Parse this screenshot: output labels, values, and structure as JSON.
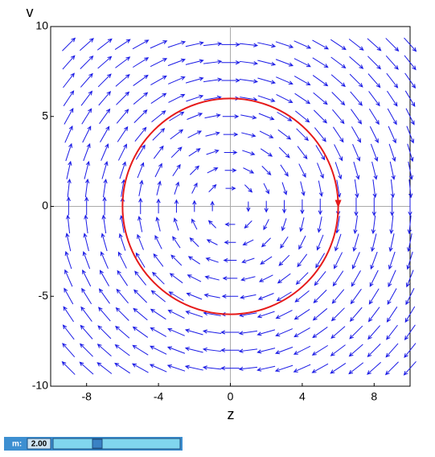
{
  "chart_data": {
    "type": "vector_field",
    "xlabel": "z",
    "ylabel": "v",
    "xlim": [
      -10,
      10
    ],
    "ylim": [
      -10,
      10
    ],
    "xticks": [
      -8,
      -4,
      0,
      4,
      8
    ],
    "yticks": [
      -10,
      -5,
      0,
      5,
      10
    ],
    "color": "#1a1ae6",
    "field": {
      "z": [
        -9,
        -8,
        -7,
        -6,
        -5,
        -4,
        -3,
        -2,
        -1,
        0,
        1,
        2,
        3,
        4,
        5,
        6,
        7,
        8,
        9,
        10
      ],
      "v": [
        -9,
        -8,
        -7,
        -6,
        -5,
        -4,
        -3,
        -2,
        -1,
        0,
        1,
        2,
        3,
        4,
        5,
        6,
        7,
        8,
        9
      ],
      "u": [
        [
          -9,
          -9,
          -9,
          -9,
          -9,
          -9,
          -9,
          -9,
          -9,
          -9,
          -9,
          -9,
          -9,
          -9,
          -9,
          -9,
          -9,
          -9,
          -9,
          -9
        ],
        [
          -8,
          -8,
          -8,
          -8,
          -8,
          -8,
          -8,
          -8,
          -8,
          -8,
          -8,
          -8,
          -8,
          -8,
          -8,
          -8,
          -8,
          -8,
          -8,
          -8
        ],
        [
          -7,
          -7,
          -7,
          -7,
          -7,
          -7,
          -7,
          -7,
          -7,
          -7,
          -7,
          -7,
          -7,
          -7,
          -7,
          -7,
          -7,
          -7,
          -7,
          -7
        ],
        [
          -6,
          -6,
          -6,
          -6,
          -6,
          -6,
          -6,
          -6,
          -6,
          -6,
          -6,
          -6,
          -6,
          -6,
          -6,
          -6,
          -6,
          -6,
          -6,
          -6
        ],
        [
          -5,
          -5,
          -5,
          -5,
          -5,
          -5,
          -5,
          -5,
          -5,
          -5,
          -5,
          -5,
          -5,
          -5,
          -5,
          -5,
          -5,
          -5,
          -5,
          -5
        ],
        [
          -4,
          -4,
          -4,
          -4,
          -4,
          -4,
          -4,
          -4,
          -4,
          -4,
          -4,
          -4,
          -4,
          -4,
          -4,
          -4,
          -4,
          -4,
          -4,
          -4
        ],
        [
          -3,
          -3,
          -3,
          -3,
          -3,
          -3,
          -3,
          -3,
          -3,
          -3,
          -3,
          -3,
          -3,
          -3,
          -3,
          -3,
          -3,
          -3,
          -3,
          -3
        ],
        [
          -2,
          -2,
          -2,
          -2,
          -2,
          -2,
          -2,
          -2,
          -2,
          -2,
          -2,
          -2,
          -2,
          -2,
          -2,
          -2,
          -2,
          -2,
          -2,
          -2
        ],
        [
          -1,
          -1,
          -1,
          -1,
          -1,
          -1,
          -1,
          -1,
          -1,
          -1,
          -1,
          -1,
          -1,
          -1,
          -1,
          -1,
          -1,
          -1,
          -1,
          -1
        ],
        [
          0,
          0,
          0,
          0,
          0,
          0,
          0,
          0,
          0,
          0,
          0,
          0,
          0,
          0,
          0,
          0,
          0,
          0,
          0,
          0
        ],
        [
          1,
          1,
          1,
          1,
          1,
          1,
          1,
          1,
          1,
          1,
          1,
          1,
          1,
          1,
          1,
          1,
          1,
          1,
          1,
          1
        ],
        [
          2,
          2,
          2,
          2,
          2,
          2,
          2,
          2,
          2,
          2,
          2,
          2,
          2,
          2,
          2,
          2,
          2,
          2,
          2,
          2
        ],
        [
          3,
          3,
          3,
          3,
          3,
          3,
          3,
          3,
          3,
          3,
          3,
          3,
          3,
          3,
          3,
          3,
          3,
          3,
          3,
          3
        ],
        [
          4,
          4,
          4,
          4,
          4,
          4,
          4,
          4,
          4,
          4,
          4,
          4,
          4,
          4,
          4,
          4,
          4,
          4,
          4,
          4
        ],
        [
          5,
          5,
          5,
          5,
          5,
          5,
          5,
          5,
          5,
          5,
          5,
          5,
          5,
          5,
          5,
          5,
          5,
          5,
          5,
          5
        ],
        [
          6,
          6,
          6,
          6,
          6,
          6,
          6,
          6,
          6,
          6,
          6,
          6,
          6,
          6,
          6,
          6,
          6,
          6,
          6,
          6
        ],
        [
          7,
          7,
          7,
          7,
          7,
          7,
          7,
          7,
          7,
          7,
          7,
          7,
          7,
          7,
          7,
          7,
          7,
          7,
          7,
          7
        ],
        [
          8,
          8,
          8,
          8,
          8,
          8,
          8,
          8,
          8,
          8,
          8,
          8,
          8,
          8,
          8,
          8,
          8,
          8,
          8,
          8
        ],
        [
          9,
          9,
          9,
          9,
          9,
          9,
          9,
          9,
          9,
          9,
          9,
          9,
          9,
          9,
          9,
          9,
          9,
          9,
          9,
          9
        ]
      ],
      "w": [
        [
          9,
          8,
          7,
          6,
          5,
          4,
          3,
          2,
          1,
          0,
          -1,
          -2,
          -3,
          -4,
          -5,
          -6,
          -7,
          -8,
          -9,
          -10
        ],
        [
          9,
          8,
          7,
          6,
          5,
          4,
          3,
          2,
          1,
          0,
          -1,
          -2,
          -3,
          -4,
          -5,
          -6,
          -7,
          -8,
          -9,
          -10
        ],
        [
          9,
          8,
          7,
          6,
          5,
          4,
          3,
          2,
          1,
          0,
          -1,
          -2,
          -3,
          -4,
          -5,
          -6,
          -7,
          -8,
          -9,
          -10
        ],
        [
          9,
          8,
          7,
          6,
          5,
          4,
          3,
          2,
          1,
          0,
          -1,
          -2,
          -3,
          -4,
          -5,
          -6,
          -7,
          -8,
          -9,
          -10
        ],
        [
          9,
          8,
          7,
          6,
          5,
          4,
          3,
          2,
          1,
          0,
          -1,
          -2,
          -3,
          -4,
          -5,
          -6,
          -7,
          -8,
          -9,
          -10
        ],
        [
          9,
          8,
          7,
          6,
          5,
          4,
          3,
          2,
          1,
          0,
          -1,
          -2,
          -3,
          -4,
          -5,
          -6,
          -7,
          -8,
          -9,
          -10
        ],
        [
          9,
          8,
          7,
          6,
          5,
          4,
          3,
          2,
          1,
          0,
          -1,
          -2,
          -3,
          -4,
          -5,
          -6,
          -7,
          -8,
          -9,
          -10
        ],
        [
          9,
          8,
          7,
          6,
          5,
          4,
          3,
          2,
          1,
          0,
          -1,
          -2,
          -3,
          -4,
          -5,
          -6,
          -7,
          -8,
          -9,
          -10
        ],
        [
          9,
          8,
          7,
          6,
          5,
          4,
          3,
          2,
          1,
          0,
          -1,
          -2,
          -3,
          -4,
          -5,
          -6,
          -7,
          -8,
          -9,
          -10
        ],
        [
          9,
          8,
          7,
          6,
          5,
          4,
          3,
          2,
          1,
          0,
          -1,
          -2,
          -3,
          -4,
          -5,
          -6,
          -7,
          -8,
          -9,
          -10
        ],
        [
          9,
          8,
          7,
          6,
          5,
          4,
          3,
          2,
          1,
          0,
          -1,
          -2,
          -3,
          -4,
          -5,
          -6,
          -7,
          -8,
          -9,
          -10
        ],
        [
          9,
          8,
          7,
          6,
          5,
          4,
          3,
          2,
          1,
          0,
          -1,
          -2,
          -3,
          -4,
          -5,
          -6,
          -7,
          -8,
          -9,
          -10
        ],
        [
          9,
          8,
          7,
          6,
          5,
          4,
          3,
          2,
          1,
          0,
          -1,
          -2,
          -3,
          -4,
          -5,
          -6,
          -7,
          -8,
          -9,
          -10
        ],
        [
          9,
          8,
          7,
          6,
          5,
          4,
          3,
          2,
          1,
          0,
          -1,
          -2,
          -3,
          -4,
          -5,
          -6,
          -7,
          -8,
          -9,
          -10
        ],
        [
          9,
          8,
          7,
          6,
          5,
          4,
          3,
          2,
          1,
          0,
          -1,
          -2,
          -3,
          -4,
          -5,
          -6,
          -7,
          -8,
          -9,
          -10
        ],
        [
          9,
          8,
          7,
          6,
          5,
          4,
          3,
          2,
          1,
          0,
          -1,
          -2,
          -3,
          -4,
          -5,
          -6,
          -7,
          -8,
          -9,
          -10
        ],
        [
          9,
          8,
          7,
          6,
          5,
          4,
          3,
          2,
          1,
          0,
          -1,
          -2,
          -3,
          -4,
          -5,
          -6,
          -7,
          -8,
          -9,
          -10
        ],
        [
          9,
          8,
          7,
          6,
          5,
          4,
          3,
          2,
          1,
          0,
          -1,
          -2,
          -3,
          -4,
          -5,
          -6,
          -7,
          -8,
          -9,
          -10
        ],
        [
          9,
          8,
          7,
          6,
          5,
          4,
          3,
          2,
          1,
          0,
          -1,
          -2,
          -3,
          -4,
          -5,
          -6,
          -7,
          -8,
          -9,
          -10
        ]
      ]
    },
    "orbit": {
      "center": [
        0,
        0
      ],
      "radius": 6,
      "color": "#e61a1a"
    }
  },
  "slider": {
    "label": "m:",
    "value": 2,
    "value_label": "2.00",
    "min": 0,
    "max": 6
  }
}
